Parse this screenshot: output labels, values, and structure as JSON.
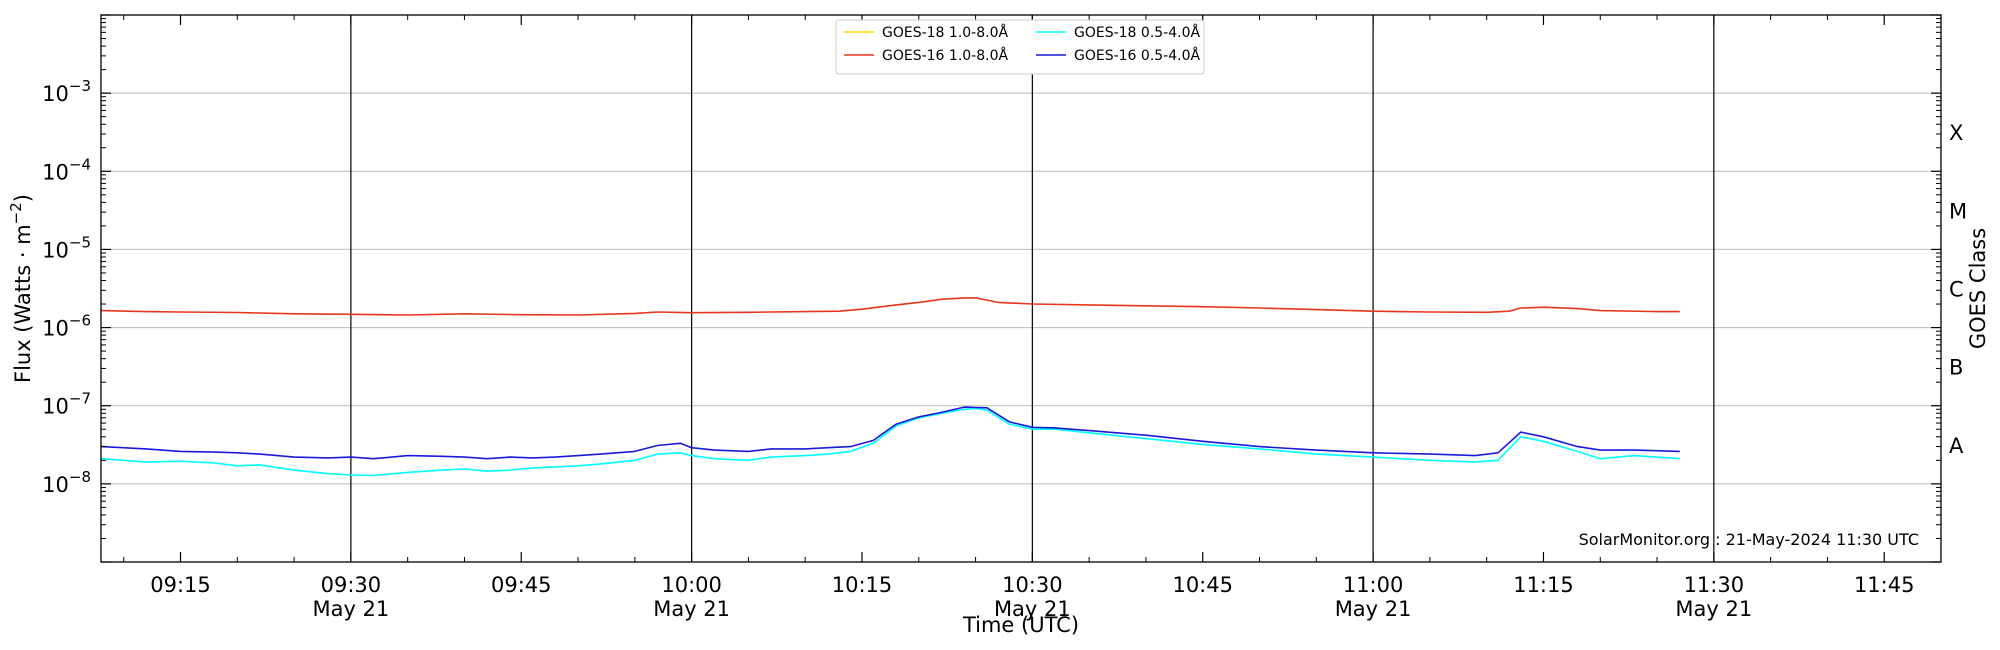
{
  "chart_data": {
    "type": "line",
    "xlabel": "Time (UTC)",
    "ylabel": "Flux (Watts · m",
    "ylabel_sup": "−2",
    "ylabel_close": ")",
    "y2label": "GOES Class",
    "yscale": "log",
    "ylim": [
      1e-09,
      0.01
    ],
    "xlim": [
      "09:08",
      "11:50"
    ],
    "grid": "horizontal",
    "legend_position": "top-center",
    "credit": "SolarMonitor.org : 21-May-2024 11:30 UTC",
    "date_label": "May 21",
    "x_ticks": [
      "09:15",
      "09:30",
      "09:45",
      "10:00",
      "10:15",
      "10:30",
      "10:45",
      "11:00",
      "11:15",
      "11:30",
      "11:45"
    ],
    "x_ticks_with_date": [
      "09:30",
      "10:00",
      "10:30",
      "11:00",
      "11:30"
    ],
    "y_ticks": [
      {
        "base": "10",
        "exp": "−3",
        "value": 0.001
      },
      {
        "base": "10",
        "exp": "−4",
        "value": 0.0001
      },
      {
        "base": "10",
        "exp": "−5",
        "value": 1e-05
      },
      {
        "base": "10",
        "exp": "−6",
        "value": 1e-06
      },
      {
        "base": "10",
        "exp": "−7",
        "value": 1e-07
      },
      {
        "base": "10",
        "exp": "−8",
        "value": 1e-08
      }
    ],
    "goes_classes": [
      {
        "label": "X",
        "value": 0.000316
      },
      {
        "label": "M",
        "value": 3.16e-05
      },
      {
        "label": "C",
        "value": 3.16e-06
      },
      {
        "label": "B",
        "value": 3.16e-07
      },
      {
        "label": "A",
        "value": 3.16e-08
      }
    ],
    "vertical_lines": [
      "09:30",
      "10:00",
      "10:30",
      "11:00",
      "11:30"
    ],
    "series": [
      {
        "name": "GOES-18 1.0-8.0Å",
        "color": "#FFD700",
        "x": [],
        "values": []
      },
      {
        "name": "GOES-16 1.0-8.0Å",
        "color": "#E8351E",
        "x": [
          "09:08",
          "09:12",
          "09:15",
          "09:20",
          "09:25",
          "09:30",
          "09:35",
          "09:40",
          "09:45",
          "09:50",
          "09:55",
          "09:57",
          "10:00",
          "10:05",
          "10:10",
          "10:13",
          "10:15",
          "10:18",
          "10:20",
          "10:22",
          "10:24",
          "10:25",
          "10:27",
          "10:30",
          "10:35",
          "10:40",
          "10:45",
          "10:50",
          "10:55",
          "11:00",
          "11:05",
          "11:10",
          "11:12",
          "11:13",
          "11:15",
          "11:18",
          "11:20",
          "11:25",
          "11:27"
        ],
        "values": [
          1.65e-06,
          1.6e-06,
          1.58e-06,
          1.56e-06,
          1.5e-06,
          1.48e-06,
          1.45e-06,
          1.5e-06,
          1.46e-06,
          1.45e-06,
          1.52e-06,
          1.58e-06,
          1.55e-06,
          1.57e-06,
          1.6e-06,
          1.62e-06,
          1.72e-06,
          1.95e-06,
          2.1e-06,
          2.3e-06,
          2.4e-06,
          2.4e-06,
          2.1e-06,
          2e-06,
          1.95e-06,
          1.9e-06,
          1.85e-06,
          1.78e-06,
          1.7e-06,
          1.62e-06,
          1.58e-06,
          1.57e-06,
          1.62e-06,
          1.78e-06,
          1.82e-06,
          1.75e-06,
          1.65e-06,
          1.6e-06,
          1.6e-06
        ]
      },
      {
        "name": "GOES-18 0.5-4.0Å",
        "color": "#00FFFF",
        "x": [
          "09:08",
          "09:12",
          "09:15",
          "09:18",
          "09:20",
          "09:22",
          "09:25",
          "09:28",
          "09:30",
          "09:32",
          "09:35",
          "09:38",
          "09:40",
          "09:42",
          "09:44",
          "09:46",
          "09:48",
          "09:50",
          "09:52",
          "09:55",
          "09:57",
          "09:59",
          "10:00",
          "10:02",
          "10:05",
          "10:07",
          "10:10",
          "10:12",
          "10:14",
          "10:16",
          "10:18",
          "10:20",
          "10:22",
          "10:24",
          "10:25",
          "10:26",
          "10:28",
          "10:30",
          "10:32",
          "10:35",
          "10:40",
          "10:45",
          "10:50",
          "10:55",
          "11:00",
          "11:05",
          "11:09",
          "11:11",
          "11:13",
          "11:15",
          "11:18",
          "11:20",
          "11:23",
          "11:27"
        ],
        "values": [
          2.1e-08,
          1.9e-08,
          1.95e-08,
          1.85e-08,
          1.7e-08,
          1.75e-08,
          1.5e-08,
          1.35e-08,
          1.3e-08,
          1.28e-08,
          1.4e-08,
          1.5e-08,
          1.55e-08,
          1.45e-08,
          1.5e-08,
          1.6e-08,
          1.65e-08,
          1.7e-08,
          1.8e-08,
          2e-08,
          2.4e-08,
          2.5e-08,
          2.3e-08,
          2.1e-08,
          2e-08,
          2.2e-08,
          2.3e-08,
          2.4e-08,
          2.6e-08,
          3.3e-08,
          5.5e-08,
          7e-08,
          8e-08,
          9e-08,
          9.2e-08,
          8.8e-08,
          5.8e-08,
          5e-08,
          5e-08,
          4.5e-08,
          3.8e-08,
          3.2e-08,
          2.8e-08,
          2.4e-08,
          2.2e-08,
          2e-08,
          1.9e-08,
          2e-08,
          4e-08,
          3.5e-08,
          2.6e-08,
          2.1e-08,
          2.3e-08,
          2.1e-08
        ]
      },
      {
        "name": "GOES-16 0.5-4.0Å",
        "color": "#1A1AD9",
        "x": [
          "09:08",
          "09:12",
          "09:15",
          "09:18",
          "09:20",
          "09:22",
          "09:25",
          "09:28",
          "09:30",
          "09:32",
          "09:35",
          "09:38",
          "09:40",
          "09:42",
          "09:44",
          "09:46",
          "09:48",
          "09:50",
          "09:52",
          "09:55",
          "09:57",
          "09:59",
          "10:00",
          "10:02",
          "10:05",
          "10:07",
          "10:10",
          "10:12",
          "10:14",
          "10:16",
          "10:18",
          "10:20",
          "10:22",
          "10:24",
          "10:25",
          "10:26",
          "10:28",
          "10:30",
          "10:32",
          "10:35",
          "10:40",
          "10:45",
          "10:50",
          "10:55",
          "11:00",
          "11:05",
          "11:09",
          "11:11",
          "11:13",
          "11:15",
          "11:18",
          "11:20",
          "11:23",
          "11:27"
        ],
        "values": [
          3e-08,
          2.8e-08,
          2.6e-08,
          2.55e-08,
          2.5e-08,
          2.4e-08,
          2.2e-08,
          2.15e-08,
          2.2e-08,
          2.1e-08,
          2.3e-08,
          2.25e-08,
          2.2e-08,
          2.1e-08,
          2.2e-08,
          2.15e-08,
          2.2e-08,
          2.3e-08,
          2.4e-08,
          2.6e-08,
          3.1e-08,
          3.3e-08,
          2.9e-08,
          2.7e-08,
          2.6e-08,
          2.8e-08,
          2.8e-08,
          2.9e-08,
          3e-08,
          3.6e-08,
          5.8e-08,
          7.2e-08,
          8.2e-08,
          9.6e-08,
          9.5e-08,
          9.4e-08,
          6.2e-08,
          5.3e-08,
          5.2e-08,
          4.8e-08,
          4.2e-08,
          3.5e-08,
          3e-08,
          2.7e-08,
          2.5e-08,
          2.4e-08,
          2.3e-08,
          2.5e-08,
          4.6e-08,
          4e-08,
          3e-08,
          2.7e-08,
          2.7e-08,
          2.6e-08
        ]
      }
    ]
  }
}
